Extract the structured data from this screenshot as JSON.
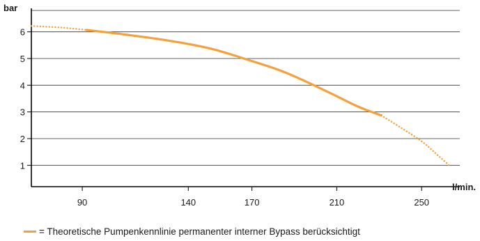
{
  "chart_data": {
    "type": "line",
    "title": "",
    "xlabel": "l/min.",
    "ylabel": "bar",
    "xlim": [
      66,
      268
    ],
    "ylim": [
      0.2,
      6.8
    ],
    "x_ticks": [
      90,
      140,
      170,
      210,
      250
    ],
    "x_tick_labels": [
      "90",
      "140",
      "170",
      "210",
      "250"
    ],
    "y_ticks": [
      1,
      2,
      3,
      4,
      5,
      6
    ],
    "grid": "horizontal",
    "legend_position": "bottom",
    "series": [
      {
        "name": "= Theoretische Pumpenkennlinie permanenter interner Bypass berücksichtigt",
        "color": "#f5a03a",
        "x": [
          66,
          80,
          92
        ],
        "y": [
          6.22,
          6.16,
          6.07
        ],
        "style": "dotted"
      },
      {
        "name": "= Theoretische Pumpenkennlinie permanenter interner Bypass berücksichtigt",
        "color": "#f5a03a",
        "x": [
          92,
          110,
          130,
          150,
          165,
          185,
          205,
          220,
          231
        ],
        "y": [
          6.07,
          5.9,
          5.68,
          5.38,
          5.03,
          4.5,
          3.78,
          3.2,
          2.87
        ],
        "style": "solid"
      },
      {
        "name": "= Theoretische Pumpenkennlinie permanenter interner Bypass berücksichtigt",
        "color": "#f5a03a",
        "x": [
          231,
          240,
          250,
          258,
          263
        ],
        "y": [
          2.87,
          2.42,
          1.9,
          1.35,
          1.0
        ],
        "style": "dotted"
      }
    ]
  },
  "legend": {
    "text": "= Theoretische Pumpenkennlinie permanenter interner Bypass berücksichtigt",
    "color": "#f5a03a"
  }
}
